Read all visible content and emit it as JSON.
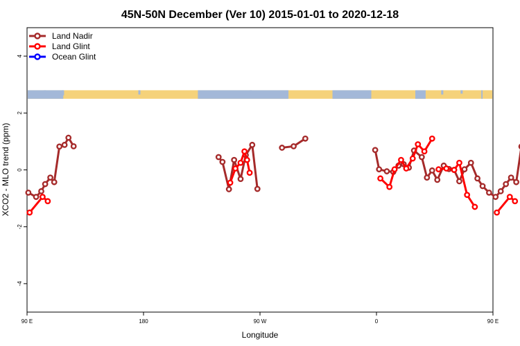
{
  "chart_data": {
    "type": "line",
    "title": "45N-50N December (Ver 10)   2015-01-01 to 2020-12-18",
    "xlabel": "Longitude",
    "ylabel": "XCO2 - MLO trend (ppm)",
    "xlim": [
      90,
      450
    ],
    "ylim": [
      -5,
      5
    ],
    "x_ticks": [
      {
        "value": 90,
        "label": "90 E"
      },
      {
        "value": 180,
        "label": "180"
      },
      {
        "value": 270,
        "label": "90 W"
      },
      {
        "value": 360,
        "label": "0"
      },
      {
        "value": 450,
        "label": "90 E"
      },
      {
        "value": 540,
        "label": "180"
      }
    ],
    "y_ticks": [
      {
        "value": -4,
        "label": "-4"
      },
      {
        "value": -2,
        "label": "-2"
      },
      {
        "value": 0,
        "label": "0"
      },
      {
        "value": 2,
        "label": "2"
      },
      {
        "value": 4,
        "label": "4"
      }
    ],
    "grid": false,
    "legend_position": "top-left",
    "map_strip": {
      "y_from": 2.5,
      "y_to": 2.8,
      "land_color": "#f5d27a",
      "ocean_color": "#a3b8d8"
    },
    "series": [
      {
        "name": "Land Nadir",
        "color": "#a52a2a",
        "segments": [
          [
            [
              91,
              -0.8
            ],
            [
              97,
              -0.95
            ],
            [
              101,
              -0.75
            ],
            [
              104,
              -0.5
            ],
            [
              108,
              -0.27
            ],
            [
              111,
              -0.43
            ],
            [
              115,
              0.82
            ],
            [
              119,
              0.88
            ],
            [
              122,
              1.13
            ],
            [
              126,
              0.83
            ]
          ],
          [
            [
              238,
              0.45
            ],
            [
              241,
              0.28
            ],
            [
              246,
              -0.68
            ],
            [
              250,
              0.35
            ],
            [
              255,
              -0.32
            ],
            [
              259,
              0.52
            ],
            [
              264,
              0.88
            ],
            [
              268,
              -0.67
            ]
          ],
          [
            [
              287,
              0.78
            ],
            [
              296,
              0.83
            ],
            [
              305,
              1.1
            ]
          ],
          [
            [
              359,
              0.7
            ],
            [
              362,
              0.02
            ],
            [
              368,
              -0.05
            ],
            [
              373,
              -0.07
            ],
            [
              377,
              0.15
            ],
            [
              381,
              0.2
            ],
            [
              385,
              0.08
            ],
            [
              389,
              0.68
            ],
            [
              395,
              0.45
            ],
            [
              399,
              -0.27
            ],
            [
              403,
              -0.02
            ],
            [
              407,
              -0.35
            ],
            [
              412,
              0.15
            ],
            [
              416,
              0.03
            ],
            [
              420,
              0.0
            ],
            [
              424,
              -0.4
            ],
            [
              428,
              0.02
            ],
            [
              433,
              0.25
            ],
            [
              438,
              -0.3
            ],
            [
              442,
              -0.57
            ],
            [
              447,
              -0.8
            ],
            [
              452,
              -0.95
            ],
            [
              456,
              -0.75
            ],
            [
              460,
              -0.5
            ],
            [
              464,
              -0.27
            ],
            [
              468,
              -0.43
            ],
            [
              472,
              0.82
            ],
            [
              477,
              0.88
            ],
            [
              481,
              1.13
            ],
            [
              486,
              0.83
            ]
          ]
        ]
      },
      {
        "name": "Land Glint",
        "color": "#ff0000",
        "segments": [
          [
            [
              92,
              -1.5
            ],
            [
              102,
              -0.95
            ],
            [
              106,
              -1.1
            ]
          ],
          [
            [
              247,
              -0.45
            ],
            [
              251,
              0.05
            ],
            [
              255,
              0.25
            ],
            [
              258,
              0.65
            ],
            [
              260,
              0.35
            ],
            [
              262,
              -0.1
            ]
          ],
          [
            [
              363,
              -0.3
            ],
            [
              370,
              -0.6
            ],
            [
              374,
              0.02
            ],
            [
              379,
              0.35
            ],
            [
              383,
              0.05
            ],
            [
              388,
              0.4
            ],
            [
              392,
              0.9
            ],
            [
              397,
              0.65
            ],
            [
              403,
              1.1
            ]
          ],
          [
            [
              408,
              0.02
            ],
            [
              414,
              0.05
            ],
            [
              420,
              0.0
            ],
            [
              424,
              0.25
            ],
            [
              430,
              -0.88
            ],
            [
              436,
              -1.3
            ]
          ],
          [
            [
              453,
              -1.5
            ],
            [
              463,
              -0.95
            ],
            [
              467,
              -1.1
            ]
          ]
        ]
      },
      {
        "name": "Ocean Glint",
        "color": "#0000ff",
        "segments": []
      }
    ]
  }
}
